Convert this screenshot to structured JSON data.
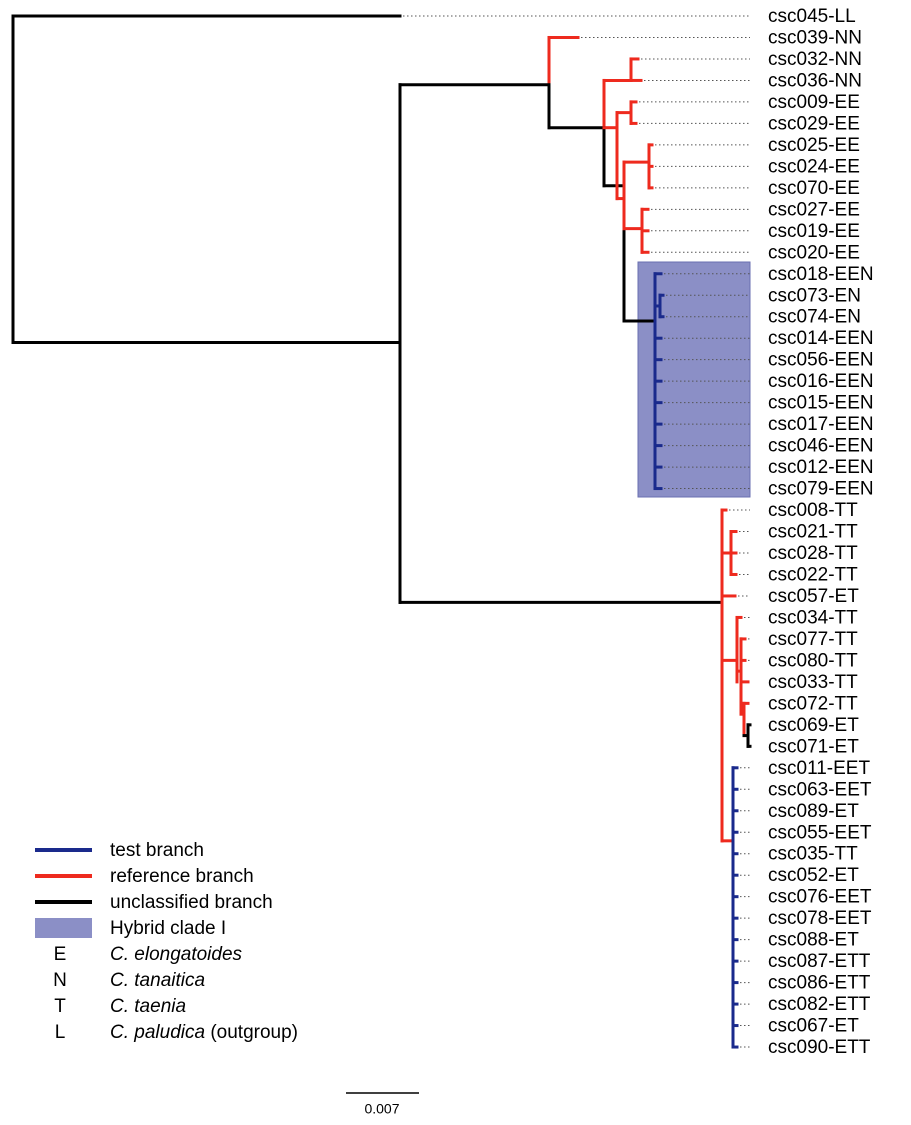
{
  "tree": {
    "leaves": [
      "csc045-LL",
      "csc039-NN",
      "csc032-NN",
      "csc036-NN",
      "csc009-EE",
      "csc029-EE",
      "csc025-EE",
      "csc024-EE",
      "csc070-EE",
      "csc027-EE",
      "csc019-EE",
      "csc020-EE",
      "csc018-EEN",
      "csc073-EN",
      "csc074-EN",
      "csc014-EEN",
      "csc056-EEN",
      "csc016-EEN",
      "csc015-EEN",
      "csc017-EEN",
      "csc046-EEN",
      "csc012-EEN",
      "csc079-EEN",
      "csc008-TT",
      "csc021-TT",
      "csc028-TT",
      "csc022-TT",
      "csc057-ET",
      "csc034-TT",
      "csc077-TT",
      "csc080-TT",
      "csc033-TT",
      "csc072-TT",
      "csc069-ET",
      "csc071-ET",
      "csc011-EET",
      "csc063-EET",
      "csc089-ET",
      "csc055-EET",
      "csc035-TT",
      "csc052-ET",
      "csc076-EET",
      "csc078-EET",
      "csc088-ET",
      "csc087-ETT",
      "csc086-ETT",
      "csc082-ETT",
      "csc067-ET",
      "csc090-ETT"
    ]
  },
  "legend": {
    "branches": [
      "test branch",
      "reference branch",
      "unclassified branch",
      "Hybrid clade I"
    ],
    "species": [
      {
        "code": "E",
        "name": "C. elongatoides"
      },
      {
        "code": "N",
        "name": "C. tanaitica"
      },
      {
        "code": "T",
        "name": "C. taenia"
      },
      {
        "code": "L",
        "name": "C. paludica",
        "note": "(outgroup)"
      }
    ]
  },
  "scale_bar": {
    "label": "0.007"
  }
}
